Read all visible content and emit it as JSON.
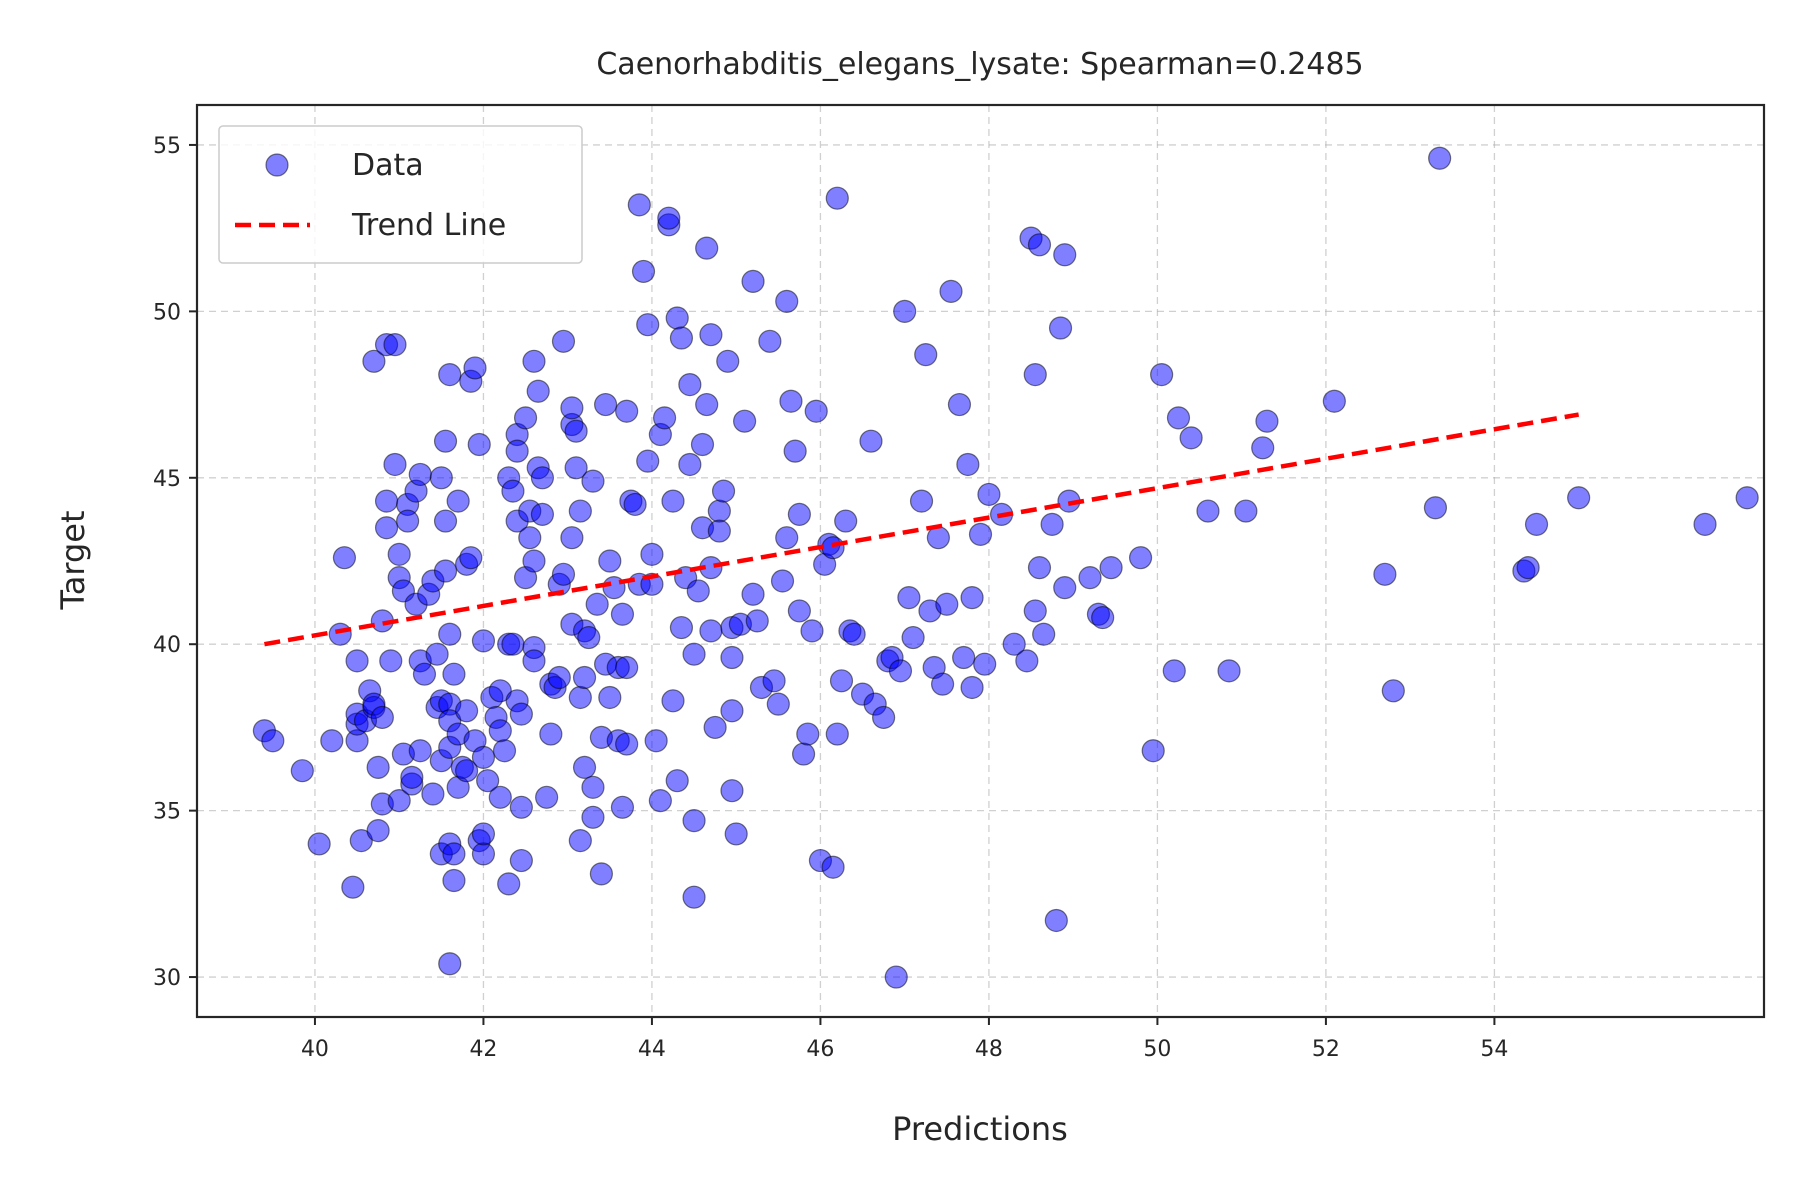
{
  "chart_data": {
    "type": "scatter",
    "title": "Caenorhabditis_elegans_lysate: Spearman=0.2485",
    "xlabel": "Predictions",
    "ylabel": "Target",
    "xlim": [
      38.6,
      57.2
    ],
    "ylim": [
      28.8,
      56.2
    ],
    "xticks": [
      40,
      42,
      44,
      46,
      48,
      50,
      52,
      54
    ],
    "yticks": [
      30,
      35,
      40,
      45,
      50,
      55
    ],
    "grid": true,
    "legend_position": "upper-left",
    "legend": [
      {
        "label": "Data",
        "kind": "marker"
      },
      {
        "label": "Trend Line",
        "kind": "line"
      }
    ],
    "colors": {
      "points": "#0000ff",
      "trend": "#ff0000"
    },
    "trend_line": {
      "x": [
        39.4,
        55.0
      ],
      "y": [
        40.0,
        46.9
      ]
    },
    "series": [
      {
        "name": "Data",
        "points": [
          [
            39.4,
            37.4
          ],
          [
            39.5,
            37.1
          ],
          [
            39.85,
            36.2
          ],
          [
            40.05,
            34.0
          ],
          [
            40.2,
            37.1
          ],
          [
            40.3,
            40.3
          ],
          [
            40.35,
            42.6
          ],
          [
            40.45,
            32.7
          ],
          [
            40.5,
            37.1
          ],
          [
            40.5,
            37.6
          ],
          [
            40.5,
            37.9
          ],
          [
            40.5,
            39.5
          ],
          [
            40.55,
            34.1
          ],
          [
            40.6,
            37.7
          ],
          [
            40.65,
            38.6
          ],
          [
            40.7,
            38.1
          ],
          [
            40.7,
            38.2
          ],
          [
            40.7,
            48.5
          ],
          [
            40.75,
            34.4
          ],
          [
            40.75,
            36.3
          ],
          [
            40.8,
            35.2
          ],
          [
            40.8,
            37.8
          ],
          [
            40.8,
            40.7
          ],
          [
            40.85,
            43.5
          ],
          [
            40.85,
            44.3
          ],
          [
            40.85,
            49.0
          ],
          [
            40.9,
            39.5
          ],
          [
            40.95,
            45.4
          ],
          [
            40.95,
            49.0
          ],
          [
            41.0,
            35.3
          ],
          [
            41.0,
            42.0
          ],
          [
            41.0,
            42.7
          ],
          [
            41.05,
            36.7
          ],
          [
            41.05,
            41.6
          ],
          [
            41.1,
            44.2
          ],
          [
            41.1,
            43.7
          ],
          [
            41.15,
            35.8
          ],
          [
            41.15,
            36.0
          ],
          [
            41.2,
            41.2
          ],
          [
            41.2,
            44.6
          ],
          [
            41.25,
            36.8
          ],
          [
            41.25,
            39.5
          ],
          [
            41.25,
            45.1
          ],
          [
            41.3,
            39.1
          ],
          [
            41.35,
            41.5
          ],
          [
            41.4,
            35.5
          ],
          [
            41.4,
            41.9
          ],
          [
            41.45,
            39.7
          ],
          [
            41.45,
            38.1
          ],
          [
            41.5,
            38.3
          ],
          [
            41.5,
            33.7
          ],
          [
            41.5,
            36.5
          ],
          [
            41.5,
            45.0
          ],
          [
            41.55,
            42.2
          ],
          [
            41.55,
            43.7
          ],
          [
            41.55,
            46.1
          ],
          [
            41.6,
            38.2
          ],
          [
            41.6,
            36.9
          ],
          [
            41.6,
            34.0
          ],
          [
            41.6,
            37.7
          ],
          [
            41.6,
            40.3
          ],
          [
            41.6,
            30.4
          ],
          [
            41.6,
            48.1
          ],
          [
            41.65,
            33.7
          ],
          [
            41.65,
            32.9
          ],
          [
            41.65,
            39.1
          ],
          [
            41.7,
            37.3
          ],
          [
            41.7,
            44.3
          ],
          [
            41.7,
            35.7
          ],
          [
            41.75,
            36.3
          ],
          [
            41.8,
            38.0
          ],
          [
            41.8,
            36.2
          ],
          [
            41.8,
            42.4
          ],
          [
            41.85,
            42.6
          ],
          [
            41.85,
            47.9
          ],
          [
            41.9,
            48.3
          ],
          [
            41.9,
            37.1
          ],
          [
            41.95,
            46.0
          ],
          [
            41.95,
            34.1
          ],
          [
            42.0,
            40.1
          ],
          [
            42.0,
            36.6
          ],
          [
            42.0,
            33.7
          ],
          [
            42.0,
            34.3
          ],
          [
            42.05,
            35.9
          ],
          [
            42.1,
            38.4
          ],
          [
            42.15,
            37.8
          ],
          [
            42.2,
            37.4
          ],
          [
            42.2,
            38.6
          ],
          [
            42.2,
            35.4
          ],
          [
            42.25,
            36.8
          ],
          [
            42.3,
            32.8
          ],
          [
            42.3,
            40.0
          ],
          [
            42.3,
            45.0
          ],
          [
            42.35,
            40.0
          ],
          [
            42.35,
            44.6
          ],
          [
            42.4,
            46.3
          ],
          [
            42.4,
            45.8
          ],
          [
            42.4,
            43.7
          ],
          [
            42.4,
            38.3
          ],
          [
            42.45,
            33.5
          ],
          [
            42.45,
            35.1
          ],
          [
            42.45,
            37.9
          ],
          [
            42.5,
            42.0
          ],
          [
            42.5,
            46.8
          ],
          [
            42.55,
            44.0
          ],
          [
            42.55,
            43.2
          ],
          [
            42.6,
            39.9
          ],
          [
            42.6,
            42.5
          ],
          [
            42.6,
            39.5
          ],
          [
            42.6,
            48.5
          ],
          [
            42.65,
            47.6
          ],
          [
            42.65,
            45.3
          ],
          [
            42.7,
            43.9
          ],
          [
            42.7,
            45.0
          ],
          [
            42.75,
            35.4
          ],
          [
            42.8,
            37.3
          ],
          [
            42.8,
            38.8
          ],
          [
            42.85,
            38.7
          ],
          [
            42.9,
            41.8
          ],
          [
            42.9,
            39.0
          ],
          [
            42.95,
            49.1
          ],
          [
            42.95,
            42.1
          ],
          [
            43.05,
            40.6
          ],
          [
            43.05,
            43.2
          ],
          [
            43.05,
            46.6
          ],
          [
            43.05,
            47.1
          ],
          [
            43.1,
            45.3
          ],
          [
            43.1,
            46.4
          ],
          [
            43.15,
            38.4
          ],
          [
            43.15,
            44.0
          ],
          [
            43.15,
            34.1
          ],
          [
            43.2,
            36.3
          ],
          [
            43.2,
            39.0
          ],
          [
            43.2,
            40.4
          ],
          [
            43.25,
            40.2
          ],
          [
            43.3,
            34.8
          ],
          [
            43.3,
            35.7
          ],
          [
            43.3,
            44.9
          ],
          [
            43.35,
            41.2
          ],
          [
            43.4,
            33.1
          ],
          [
            43.4,
            37.2
          ],
          [
            43.45,
            39.4
          ],
          [
            43.45,
            47.2
          ],
          [
            43.5,
            42.5
          ],
          [
            43.5,
            38.4
          ],
          [
            43.55,
            41.7
          ],
          [
            43.6,
            39.3
          ],
          [
            43.6,
            37.1
          ],
          [
            43.65,
            35.1
          ],
          [
            43.65,
            40.9
          ],
          [
            43.7,
            39.3
          ],
          [
            43.7,
            47.0
          ],
          [
            43.7,
            37.0
          ],
          [
            43.75,
            44.3
          ],
          [
            43.8,
            44.2
          ],
          [
            43.85,
            53.2
          ],
          [
            43.85,
            41.8
          ],
          [
            43.9,
            51.2
          ],
          [
            43.95,
            45.5
          ],
          [
            43.95,
            49.6
          ],
          [
            44.0,
            42.7
          ],
          [
            44.0,
            41.8
          ],
          [
            44.05,
            37.1
          ],
          [
            44.1,
            35.3
          ],
          [
            44.1,
            46.3
          ],
          [
            44.15,
            46.8
          ],
          [
            44.2,
            52.6
          ],
          [
            44.2,
            52.8
          ],
          [
            44.25,
            44.3
          ],
          [
            44.25,
            38.3
          ],
          [
            44.3,
            49.8
          ],
          [
            44.3,
            35.9
          ],
          [
            44.35,
            40.5
          ],
          [
            44.35,
            49.2
          ],
          [
            44.4,
            42.0
          ],
          [
            44.45,
            47.8
          ],
          [
            44.45,
            45.4
          ],
          [
            44.5,
            32.4
          ],
          [
            44.5,
            34.7
          ],
          [
            44.5,
            39.7
          ],
          [
            44.55,
            41.6
          ],
          [
            44.6,
            43.5
          ],
          [
            44.6,
            46.0
          ],
          [
            44.65,
            47.2
          ],
          [
            44.65,
            51.9
          ],
          [
            44.7,
            40.4
          ],
          [
            44.7,
            42.3
          ],
          [
            44.7,
            49.3
          ],
          [
            44.75,
            37.5
          ],
          [
            44.8,
            44.0
          ],
          [
            44.8,
            43.4
          ],
          [
            44.85,
            44.6
          ],
          [
            44.9,
            48.5
          ],
          [
            44.95,
            38.0
          ],
          [
            44.95,
            39.6
          ],
          [
            44.95,
            40.5
          ],
          [
            44.95,
            35.6
          ],
          [
            45.0,
            34.3
          ],
          [
            45.05,
            40.6
          ],
          [
            45.1,
            46.7
          ],
          [
            45.2,
            50.9
          ],
          [
            45.2,
            41.5
          ],
          [
            45.25,
            40.7
          ],
          [
            45.3,
            38.7
          ],
          [
            45.4,
            49.1
          ],
          [
            45.45,
            38.9
          ],
          [
            45.5,
            38.2
          ],
          [
            45.55,
            41.9
          ],
          [
            45.6,
            50.3
          ],
          [
            45.6,
            43.2
          ],
          [
            45.65,
            47.3
          ],
          [
            45.7,
            45.8
          ],
          [
            45.75,
            43.9
          ],
          [
            45.75,
            41.0
          ],
          [
            45.8,
            36.7
          ],
          [
            45.85,
            37.3
          ],
          [
            45.9,
            40.4
          ],
          [
            45.95,
            47.0
          ],
          [
            46.0,
            33.5
          ],
          [
            46.05,
            42.4
          ],
          [
            46.1,
            43.0
          ],
          [
            46.15,
            42.9
          ],
          [
            46.15,
            33.3
          ],
          [
            46.2,
            37.3
          ],
          [
            46.2,
            53.4
          ],
          [
            46.25,
            38.9
          ],
          [
            46.3,
            43.7
          ],
          [
            46.35,
            40.4
          ],
          [
            46.4,
            40.3
          ],
          [
            46.5,
            38.5
          ],
          [
            46.6,
            46.1
          ],
          [
            46.65,
            38.2
          ],
          [
            46.75,
            37.8
          ],
          [
            46.8,
            39.5
          ],
          [
            46.85,
            39.6
          ],
          [
            46.9,
            30.0
          ],
          [
            46.95,
            39.2
          ],
          [
            47.0,
            50.0
          ],
          [
            47.05,
            41.4
          ],
          [
            47.1,
            40.2
          ],
          [
            47.2,
            44.3
          ],
          [
            47.25,
            48.7
          ],
          [
            47.3,
            41.0
          ],
          [
            47.35,
            39.3
          ],
          [
            47.4,
            43.2
          ],
          [
            47.45,
            38.8
          ],
          [
            47.5,
            41.2
          ],
          [
            47.55,
            50.6
          ],
          [
            47.65,
            47.2
          ],
          [
            47.7,
            39.6
          ],
          [
            47.75,
            45.4
          ],
          [
            47.8,
            38.7
          ],
          [
            47.8,
            41.4
          ],
          [
            47.9,
            43.3
          ],
          [
            47.95,
            39.4
          ],
          [
            48.0,
            44.5
          ],
          [
            48.15,
            43.9
          ],
          [
            48.3,
            40.0
          ],
          [
            48.45,
            39.5
          ],
          [
            48.5,
            52.2
          ],
          [
            48.55,
            41.0
          ],
          [
            48.55,
            48.1
          ],
          [
            48.6,
            52.0
          ],
          [
            48.6,
            42.3
          ],
          [
            48.65,
            40.3
          ],
          [
            48.75,
            43.6
          ],
          [
            48.8,
            31.7
          ],
          [
            48.85,
            49.5
          ],
          [
            48.9,
            41.7
          ],
          [
            48.9,
            51.7
          ],
          [
            48.95,
            44.3
          ],
          [
            49.2,
            42.0
          ],
          [
            49.3,
            40.9
          ],
          [
            49.35,
            40.8
          ],
          [
            49.45,
            42.3
          ],
          [
            49.8,
            42.6
          ],
          [
            49.95,
            36.8
          ],
          [
            50.05,
            48.1
          ],
          [
            50.2,
            39.2
          ],
          [
            50.25,
            46.8
          ],
          [
            50.4,
            46.2
          ],
          [
            50.6,
            44.0
          ],
          [
            50.85,
            39.2
          ],
          [
            51.05,
            44.0
          ],
          [
            51.25,
            45.9
          ],
          [
            51.3,
            46.7
          ],
          [
            52.1,
            47.3
          ],
          [
            52.7,
            42.1
          ],
          [
            52.8,
            38.6
          ],
          [
            53.3,
            44.1
          ],
          [
            53.35,
            54.6
          ],
          [
            54.35,
            42.2
          ],
          [
            54.4,
            42.3
          ],
          [
            56.5,
            43.6
          ],
          [
            57.0,
            44.4
          ],
          [
            55.0,
            44.4
          ],
          [
            54.5,
            43.6
          ]
        ]
      }
    ]
  }
}
